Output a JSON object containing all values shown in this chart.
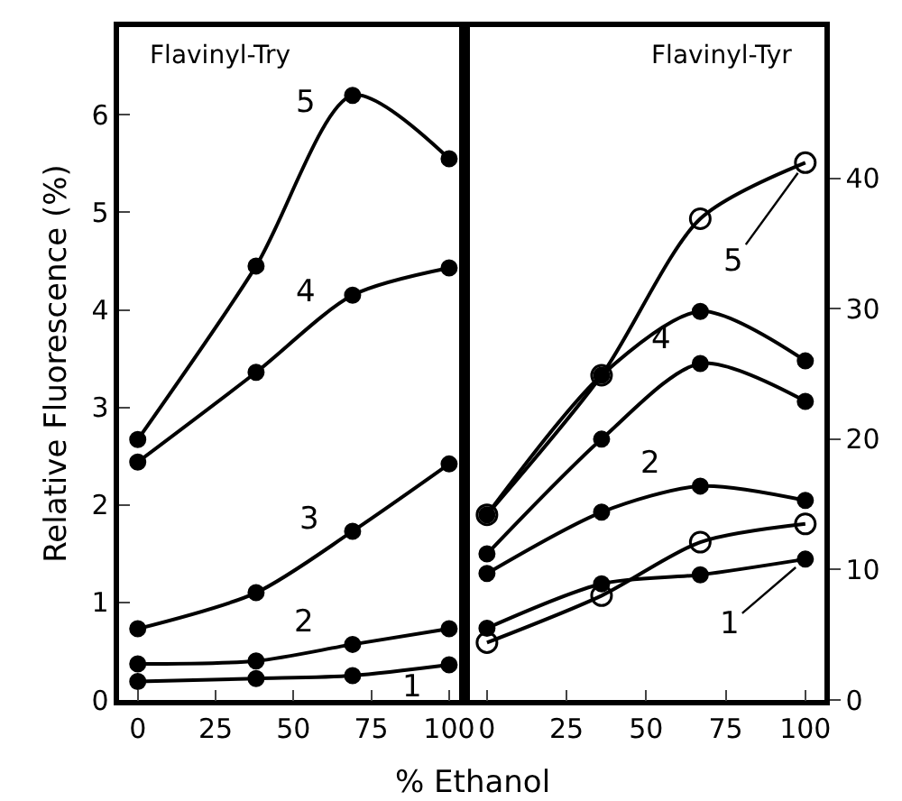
{
  "chart_data": [
    {
      "type": "line",
      "title": "Flavinyl-Try",
      "ylabel": "Relative Fluorescence (%)",
      "xlabel": "% Ethanol",
      "x": [
        0,
        38,
        69,
        100
      ],
      "xlim": [
        -6,
        105
      ],
      "xticks": [
        0,
        25,
        50,
        75,
        100
      ],
      "ylim": [
        0,
        6.9
      ],
      "yticks": [
        0,
        1,
        2,
        3,
        4,
        5,
        6
      ],
      "grid": false,
      "line_style": "solid",
      "series": [
        {
          "color": "#000000",
          "marker": "circle",
          "values": [
            2.67,
            4.45,
            6.2,
            5.55
          ]
        },
        {
          "color": "#000000",
          "marker": "circle",
          "values": [
            2.44,
            3.36,
            4.15,
            4.43
          ]
        },
        {
          "color": "#000000",
          "marker": "circle",
          "values": [
            0.73,
            1.1,
            1.73,
            2.42
          ]
        },
        {
          "color": "#000000",
          "marker": "circle",
          "values": [
            0.37,
            0.4,
            0.57,
            0.73
          ]
        },
        {
          "color": "#000000",
          "marker": "circle",
          "values": [
            0.19,
            0.22,
            0.25,
            0.36
          ]
        }
      ],
      "annotations": [
        {
          "text": "5",
          "x": 69,
          "y": 6.2
        },
        {
          "text": "4",
          "x": 69,
          "y": 4.15
        },
        {
          "text": "3",
          "x": 69,
          "y": 1.73
        },
        {
          "text": "2",
          "x": 69,
          "y": 0.57
        },
        {
          "text": "1",
          "x": 100,
          "y": 0.36
        }
      ]
    },
    {
      "type": "line",
      "title": "Flavinyl-Tyr",
      "x": [
        0,
        36,
        67,
        100
      ],
      "xlim": [
        -7,
        106
      ],
      "xticks": [
        0,
        25,
        50,
        75,
        100
      ],
      "ylim": [
        0,
        51.6
      ],
      "yticks": [
        0,
        10,
        20,
        30,
        40
      ],
      "grid": false,
      "line_style": "solid",
      "series": [
        {
          "color": "#000000",
          "marker": "circle-open",
          "values": [
            14.2,
            24.9,
            36.9,
            41.2
          ]
        },
        {
          "color": "#000000",
          "marker": "circle",
          "values": [
            14.2,
            24.9,
            29.8,
            26.0
          ]
        },
        {
          "color": "#000000",
          "marker": "circle",
          "values": [
            11.2,
            20.0,
            25.8,
            22.9
          ]
        },
        {
          "color": "#000000",
          "marker": "circle",
          "values": [
            9.7,
            14.4,
            16.4,
            15.3
          ]
        },
        {
          "color": "#000000",
          "marker": "circle-open",
          "values": [
            4.4,
            8.0,
            12.1,
            13.5
          ]
        },
        {
          "color": "#000000",
          "marker": "circle",
          "values": [
            5.5,
            8.9,
            9.6,
            10.8
          ]
        }
      ],
      "annotations": [
        {
          "text": "5",
          "x": 100,
          "y": 41.2
        },
        {
          "text": "4",
          "x": 67,
          "y": 25.8
        },
        {
          "text": "2",
          "x": 67,
          "y": 16.4
        },
        {
          "text": "1",
          "x": 100,
          "y": 10.8
        }
      ]
    }
  ]
}
